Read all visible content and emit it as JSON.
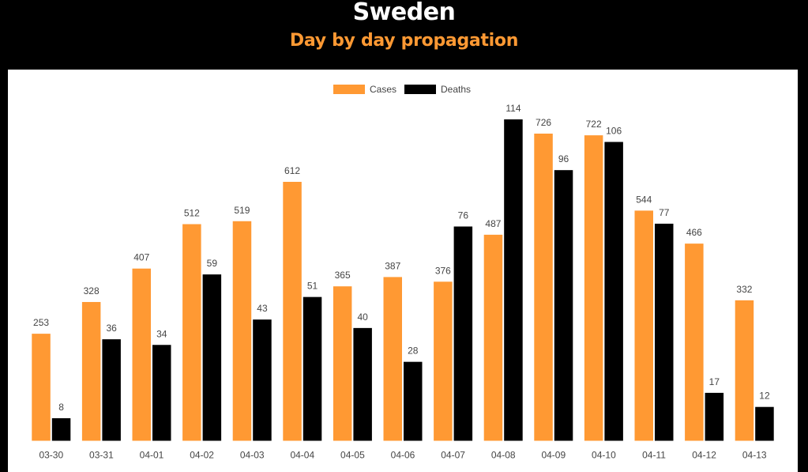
{
  "header": {
    "title": "Sweden",
    "subtitle": "Day by day propagation"
  },
  "colors": {
    "cases": "#ff9933",
    "deaths": "#000000",
    "subtitle": "#ff9933"
  },
  "chart_data": {
    "type": "bar",
    "title": "Sweden",
    "subtitle": "Day by day propagation",
    "xlabel": "",
    "ylabel": "",
    "ylim": [
      0,
      128
    ],
    "grid": false,
    "legend": "top-center",
    "categories": [
      "03-30",
      "03-31",
      "04-01",
      "04-02",
      "04-03",
      "04-04",
      "04-05",
      "04-06",
      "04-07",
      "04-08",
      "04-09",
      "04-10",
      "04-11",
      "04-12",
      "04-13"
    ],
    "series": [
      {
        "name": "Cases",
        "color": "#ff9933",
        "values": [
          253,
          328,
          407,
          512,
          519,
          612,
          365,
          387,
          376,
          487,
          726,
          722,
          544,
          466,
          332
        ]
      },
      {
        "name": "Deaths",
        "color": "#000000",
        "values": [
          8,
          36,
          34,
          59,
          43,
          51,
          40,
          28,
          76,
          114,
          96,
          106,
          77,
          17,
          12
        ]
      }
    ]
  }
}
